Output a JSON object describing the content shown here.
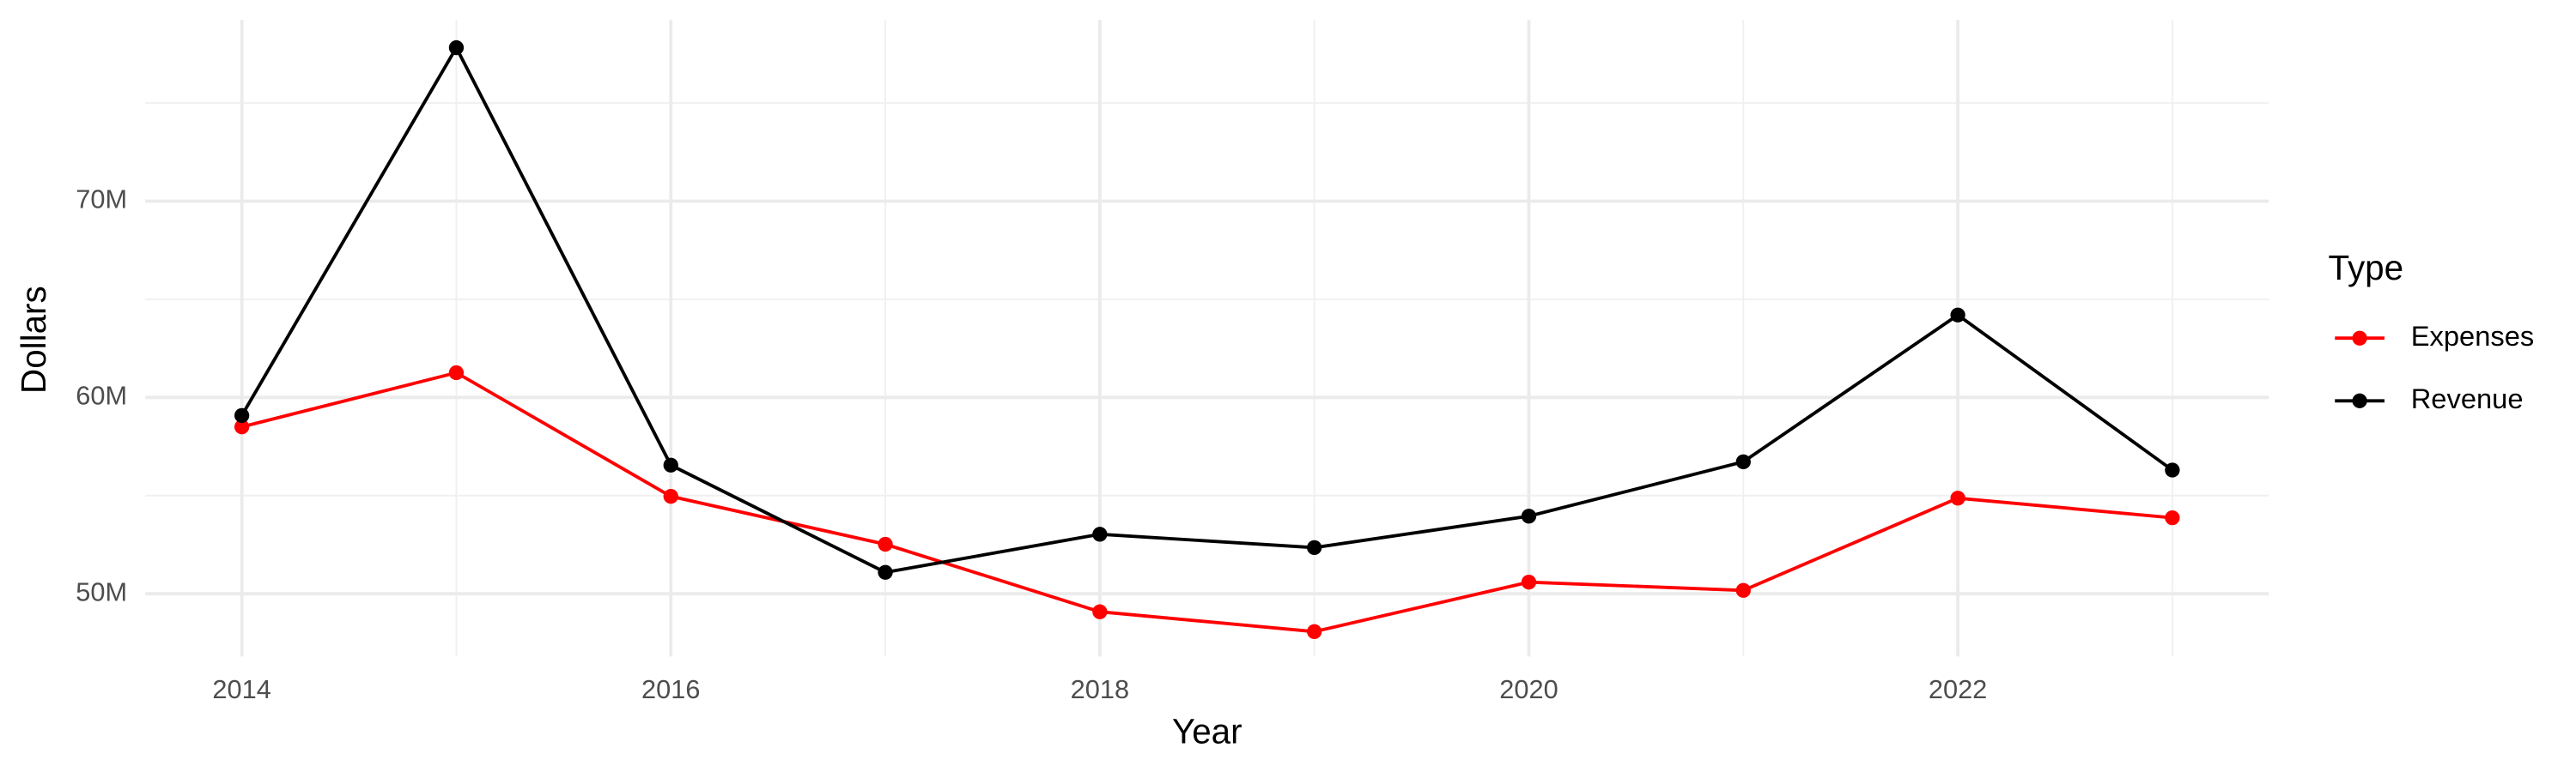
{
  "chart_data": {
    "type": "line",
    "x_label": "Year",
    "y_label": "Dollars",
    "x": [
      2014,
      2015,
      2016,
      2017,
      2018,
      2019,
      2020,
      2021,
      2022,
      2023
    ],
    "series": [
      {
        "name": "Expenses",
        "color": "#ff0000",
        "values": [
          58500000,
          61260000,
          54960000,
          52520000,
          49080000,
          48070000,
          50590000,
          50170000,
          54870000,
          53870000
        ]
      },
      {
        "name": "Revenue",
        "color": "#000000",
        "values": [
          59080000,
          77820000,
          56550000,
          51090000,
          53030000,
          52350000,
          53950000,
          56720000,
          64200000,
          56300000
        ]
      }
    ],
    "xlim": [
      2013.55,
      2023.45
    ],
    "xticks": [
      2014,
      2016,
      2018,
      2020,
      2022
    ],
    "ylim": [
      46800000,
      79240000
    ],
    "yticks": [
      {
        "value": 50000000,
        "label": "50M"
      },
      {
        "value": 60000000,
        "label": "60M"
      },
      {
        "value": 70000000,
        "label": "70M"
      }
    ],
    "grid": true,
    "legend": {
      "title": "Type",
      "position": "right"
    }
  }
}
